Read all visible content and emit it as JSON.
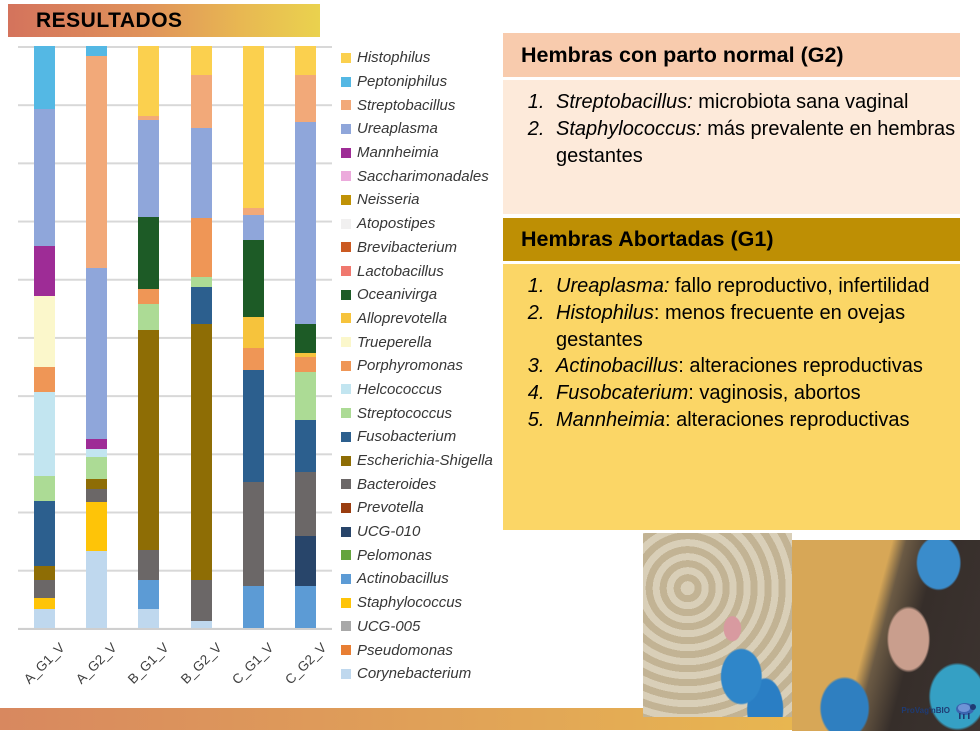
{
  "slide": {
    "title": "RESULTADOS"
  },
  "chart_data": {
    "type": "bar",
    "stacked": true,
    "units": "percent (100% stacked)",
    "ylim": [
      0,
      100
    ],
    "grid": "horizontal lines every 10%",
    "legend_position": "right",
    "x_label_rotation": -45,
    "categories": [
      "A_G1_V",
      "A_G2_V",
      "B_G1_V",
      "B_G2_V",
      "C_G1_V",
      "C_G2_V"
    ],
    "series": [
      {
        "name": "Histophilus",
        "color": "#FBD04E",
        "values": [
          0,
          0,
          12.0,
          5.0,
          27.9,
          5.0
        ]
      },
      {
        "name": "Peptoniphilus",
        "color": "#54B8E4",
        "values": [
          10.8,
          1.7,
          0,
          0,
          0,
          0
        ]
      },
      {
        "name": "Streptobacillus",
        "color": "#F2A979",
        "values": [
          0,
          36.5,
          0.7,
          9.1,
          1.2,
          8.1
        ]
      },
      {
        "name": "Ureaplasma",
        "color": "#8FA6DA",
        "values": [
          23.7,
          29.6,
          16.9,
          15.5,
          4.3,
          34.9
        ]
      },
      {
        "name": "Mannheimia",
        "color": "#9E2C96",
        "values": [
          8.6,
          1.7,
          0,
          0,
          0,
          0
        ]
      },
      {
        "name": "Saccharimonadales",
        "color": "#ECAADC",
        "values": [
          0,
          0,
          0,
          0,
          0,
          0
        ]
      },
      {
        "name": "Neisseria",
        "color": "#C09206",
        "values": [
          0,
          0,
          0,
          0,
          0,
          0
        ]
      },
      {
        "name": "Atopostipes",
        "color": "#F1F0F0",
        "values": [
          0,
          0,
          0,
          0,
          0,
          0
        ]
      },
      {
        "name": "Brevibacterium",
        "color": "#CB5A22",
        "values": [
          0,
          0,
          0,
          0,
          0,
          0
        ]
      },
      {
        "name": "Lactobacillus",
        "color": "#F0786E",
        "values": [
          0,
          0,
          0,
          0,
          0,
          0
        ]
      },
      {
        "name": "Oceanivirga",
        "color": "#1D5B26",
        "values": [
          0,
          0,
          12.4,
          0,
          13.3,
          5.0
        ]
      },
      {
        "name": "Alloprevotella",
        "color": "#F6C33C",
        "values": [
          0,
          0,
          0,
          0,
          5.3,
          0.7
        ]
      },
      {
        "name": "Trueperella",
        "color": "#FBF7CB",
        "values": [
          12.2,
          0,
          0,
          0,
          0,
          0
        ]
      },
      {
        "name": "Porphyromonas",
        "color": "#EF9656",
        "values": [
          4.3,
          0,
          2.6,
          10.3,
          3.8,
          2.6
        ]
      },
      {
        "name": "Helcococcus",
        "color": "#C2E5F0",
        "values": [
          14.4,
          1.4,
          0,
          0,
          0,
          0
        ]
      },
      {
        "name": "Streptococcus",
        "color": "#ACDB95",
        "values": [
          4.3,
          3.8,
          4.5,
          1.7,
          0,
          8.3
        ]
      },
      {
        "name": "Fusobacterium",
        "color": "#2C5F8E",
        "values": [
          11.2,
          0,
          0,
          6.4,
          19.4,
          8.8
        ]
      },
      {
        "name": "Escherichia-Shigella",
        "color": "#8E6D05",
        "values": [
          2.4,
          1.7,
          37.9,
          44.1,
          0,
          0
        ]
      },
      {
        "name": "Bacteroides",
        "color": "#6B6767",
        "values": [
          3.1,
          2.2,
          5.2,
          7.1,
          17.9,
          11.2
        ]
      },
      {
        "name": "Prevotella",
        "color": "#9A3D10",
        "values": [
          0,
          0,
          0,
          0,
          0,
          0
        ]
      },
      {
        "name": "UCG-010",
        "color": "#28456A",
        "values": [
          0,
          0,
          0,
          0,
          0,
          8.6
        ]
      },
      {
        "name": "Pelomonas",
        "color": "#64A43E",
        "values": [
          0,
          0,
          0,
          0,
          0,
          0
        ]
      },
      {
        "name": "Actinobacillus",
        "color": "#5C9BD5",
        "values": [
          0,
          0,
          5.0,
          0,
          7.2,
          7.2
        ]
      },
      {
        "name": "Staphylococcus",
        "color": "#FEC408",
        "values": [
          1.9,
          8.4,
          0,
          0,
          0,
          0
        ]
      },
      {
        "name": "UCG-005",
        "color": "#A8A8A8",
        "values": [
          0,
          0,
          0,
          0,
          0,
          0
        ]
      },
      {
        "name": "Pseudomonas",
        "color": "#E87E33",
        "values": [
          0,
          0,
          0,
          0,
          0,
          0
        ]
      },
      {
        "name": "Corynebacterium",
        "color": "#BFD8EE",
        "values": [
          3.3,
          13.3,
          3.3,
          1.2,
          0,
          0
        ]
      }
    ]
  },
  "panels": {
    "g2": {
      "header": "Hembras con  parto normal (G2)",
      "items": [
        {
          "term": "Streptobacillus:",
          "rest": " microbiota sana vaginal"
        },
        {
          "term": "Staphylococcus:",
          "rest": " más prevalente en hembras gestantes"
        }
      ]
    },
    "g1": {
      "header": "Hembras Abortadas (G1)",
      "items": [
        {
          "term": "Ureaplasma:",
          "rest": " fallo reproductivo, infertilidad"
        },
        {
          "term": "Histophilus",
          "rest": ": menos frecuente en ovejas gestantes"
        },
        {
          "term": "Actinobacillus",
          "rest": ": alteraciones reproductivas"
        },
        {
          "term": "Fusobcaterium",
          "rest": ": vaginosis, abortos"
        },
        {
          "term": "Mannheimia",
          "rest": ": alteraciones reproductivas"
        }
      ]
    }
  },
  "photos": [
    {
      "name": "sheep-vaginal-swab-sampling-wool"
    },
    {
      "name": "sheep-vaginal-swab-sampling-closeup"
    }
  ],
  "footer": {
    "logo_text": "ProVag'nBIO"
  }
}
